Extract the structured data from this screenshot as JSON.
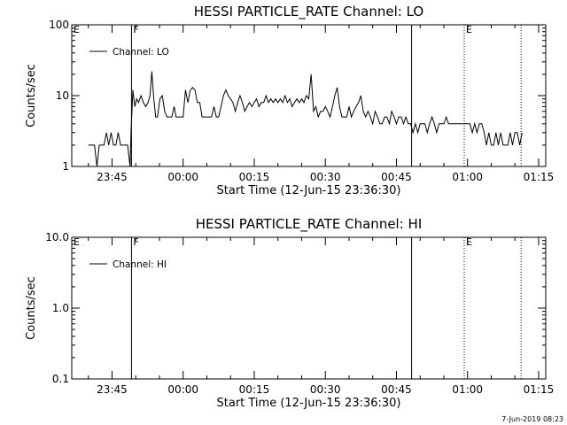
{
  "timestamp": "7-Jun-2019 08:23",
  "chart_data": [
    {
      "type": "line",
      "title": "HESSI PARTICLE_RATE Channel: LO",
      "ylabel": "Counts/sec",
      "xlabel": "Start Time (12-Jun-15 23:36:30)",
      "y_scale": "log",
      "ylim": [
        1,
        100
      ],
      "y_ticks": [
        {
          "value": 1,
          "label": "1"
        },
        {
          "value": 10,
          "label": "10"
        },
        {
          "value": 100,
          "label": "100"
        }
      ],
      "xlim_minutes": [
        0,
        100
      ],
      "x_ticks": [
        {
          "value": 8.5,
          "label": "23:45"
        },
        {
          "value": 23.5,
          "label": "00:00"
        },
        {
          "value": 38.5,
          "label": "00:15"
        },
        {
          "value": 53.5,
          "label": "00:30"
        },
        {
          "value": 68.5,
          "label": "00:45"
        },
        {
          "value": 83.5,
          "label": "01:00"
        },
        {
          "value": 98.5,
          "label": "01:15"
        }
      ],
      "legend": {
        "position": "top-left",
        "entries": [
          "Channel: LO"
        ]
      },
      "flags": [
        {
          "label": "E",
          "x": 0,
          "style": "none"
        },
        {
          "label": "F",
          "x": 12.6,
          "style": "solid"
        },
        {
          "label": "",
          "x": 71.7,
          "style": "solid"
        },
        {
          "label": "E",
          "x": 82.8,
          "style": "dotted"
        },
        {
          "label": "",
          "x": 94.8,
          "style": "dotted"
        }
      ],
      "series": [
        {
          "name": "Channel: LO",
          "x": [
            3.5,
            4.8,
            5.3,
            5.8,
            6.3,
            6.8,
            7.3,
            7.8,
            8.3,
            8.8,
            9.3,
            9.8,
            10.3,
            10.8,
            11.3,
            11.8,
            12.3,
            12.5,
            12.9,
            13.3,
            13.7,
            14.1,
            14.6,
            15.1,
            15.6,
            16.1,
            16.5,
            16.9,
            17.3,
            17.7,
            18.1,
            18.6,
            19.1,
            19.6,
            20.1,
            20.6,
            21.1,
            21.6,
            22.0,
            22.5,
            23.0,
            23.5,
            24.0,
            24.5,
            25.0,
            25.5,
            26.0,
            26.5,
            27.0,
            27.5,
            28.0,
            28.5,
            29.0,
            29.5,
            30.0,
            30.5,
            31.0,
            31.5,
            32.0,
            32.5,
            33.0,
            33.5,
            34.0,
            34.5,
            35.0,
            35.5,
            36.0,
            36.5,
            37.0,
            37.5,
            38.0,
            38.5,
            39.0,
            39.5,
            40.0,
            40.5,
            41.0,
            41.5,
            42.0,
            42.5,
            43.0,
            43.5,
            44.0,
            44.5,
            45.0,
            45.5,
            46.0,
            46.5,
            47.0,
            47.5,
            48.0,
            48.5,
            49.0,
            49.5,
            50.0,
            50.5,
            51.0,
            51.5,
            52.0,
            52.5,
            53.0,
            53.5,
            54.0,
            54.5,
            55.0,
            55.5,
            56.0,
            56.5,
            57.0,
            57.5,
            58.0,
            58.5,
            59.0,
            59.5,
            60.0,
            60.5,
            61.0,
            61.5,
            62.0,
            62.5,
            63.0,
            63.5,
            64.0,
            64.5,
            65.0,
            65.5,
            66.0,
            66.5,
            67.0,
            67.5,
            68.0,
            68.5,
            69.0,
            69.5,
            70.0,
            70.5,
            71.0,
            71.5,
            72.0,
            72.5,
            73.0,
            73.5,
            74.0,
            74.5,
            75.0,
            75.5,
            76.0,
            76.5,
            77.0,
            77.5,
            78.0,
            78.5,
            79.0,
            79.5,
            80.0,
            80.5,
            81.0,
            81.5,
            82.0,
            82.5,
            83.0,
            83.5,
            84.0,
            84.5,
            85.0,
            85.5,
            86.0,
            86.5,
            87.0,
            87.5,
            88.0,
            88.5,
            89.0,
            89.5,
            90.0,
            90.5,
            91.0,
            91.5,
            92.0,
            92.5,
            93.0,
            93.5,
            94.0,
            94.5,
            95.0
          ],
          "values": [
            2,
            2,
            1,
            2,
            2,
            2,
            3,
            2,
            3,
            2,
            2,
            3,
            2,
            2,
            2,
            2,
            1,
            3,
            12,
            7,
            9,
            8,
            10,
            8,
            7,
            8,
            10,
            22,
            9,
            5,
            5,
            9,
            10,
            6,
            5,
            5,
            5,
            7,
            5,
            5,
            5,
            5,
            12,
            8,
            12,
            13,
            12,
            8,
            8,
            5,
            5,
            5,
            5,
            5,
            7,
            5,
            5,
            7,
            10,
            12,
            10,
            9,
            8,
            6,
            8,
            10,
            8,
            6,
            7,
            8,
            7,
            8,
            9,
            7,
            8,
            8,
            10,
            8,
            9,
            8,
            9,
            8,
            9,
            8,
            10,
            8,
            9,
            7,
            8,
            9,
            8,
            9,
            8,
            10,
            9,
            20,
            6,
            7,
            5,
            6,
            6,
            7,
            6,
            5,
            7,
            10,
            13,
            7,
            5,
            5,
            5,
            7,
            5,
            6,
            7,
            8,
            10,
            6,
            5,
            6,
            5,
            4,
            6,
            5,
            4,
            4,
            5,
            5,
            4,
            6,
            5,
            4,
            5,
            5,
            4,
            5,
            4,
            4,
            3,
            4,
            3,
            4,
            4,
            4,
            3,
            4,
            5,
            4,
            3,
            4,
            4,
            4,
            5,
            4,
            4,
            4,
            4,
            4,
            4,
            4,
            4,
            4,
            4,
            3,
            4,
            3,
            4,
            4,
            3,
            2,
            3,
            2,
            2,
            3,
            2,
            3,
            2,
            2,
            2,
            3,
            2,
            3,
            3,
            2,
            3
          ]
        }
      ]
    },
    {
      "type": "line",
      "title": "HESSI PARTICLE_RATE Channel: HI",
      "ylabel": "Counts/sec",
      "xlabel": "Start Time (12-Jun-15 23:36:30)",
      "y_scale": "log",
      "ylim": [
        0.1,
        10
      ],
      "y_ticks": [
        {
          "value": 0.1,
          "label": "0.1"
        },
        {
          "value": 1,
          "label": "1.0"
        },
        {
          "value": 10,
          "label": "10.0"
        }
      ],
      "xlim_minutes": [
        0,
        100
      ],
      "x_ticks": [
        {
          "value": 8.5,
          "label": "23:45"
        },
        {
          "value": 23.5,
          "label": "00:00"
        },
        {
          "value": 38.5,
          "label": "00:15"
        },
        {
          "value": 53.5,
          "label": "00:30"
        },
        {
          "value": 68.5,
          "label": "00:45"
        },
        {
          "value": 83.5,
          "label": "01:00"
        },
        {
          "value": 98.5,
          "label": "01:15"
        }
      ],
      "legend": {
        "position": "top-left",
        "entries": [
          "Channel: HI"
        ]
      },
      "flags": [
        {
          "label": "E",
          "x": 0,
          "style": "none"
        },
        {
          "label": "F",
          "x": 12.6,
          "style": "solid"
        },
        {
          "label": "",
          "x": 71.7,
          "style": "solid"
        },
        {
          "label": "E",
          "x": 82.8,
          "style": "dotted"
        },
        {
          "label": "",
          "x": 94.8,
          "style": "dotted"
        }
      ],
      "series": [
        {
          "name": "Channel: HI",
          "x": [],
          "values": []
        }
      ]
    }
  ]
}
